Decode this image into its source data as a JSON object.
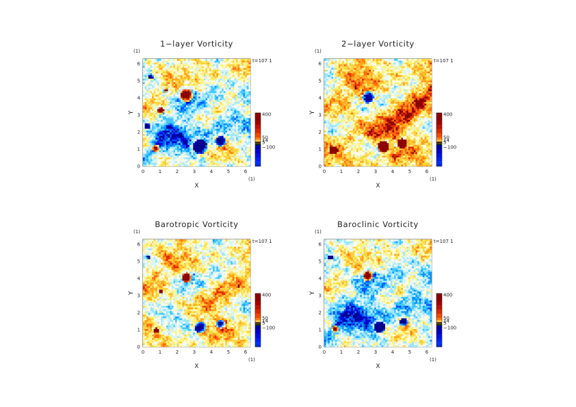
{
  "chart_data": [
    {
      "type": "heatmap",
      "title": "1−layer Vorticity",
      "xlabel": "X",
      "ylabel": "Y",
      "x_unit": "(1)",
      "y_unit": "(1)",
      "time_label": "t=107 1",
      "xlim": [
        0,
        6.28
      ],
      "ylim": [
        0,
        6.28
      ],
      "x_ticks": [
        "0",
        "1",
        "2",
        "3",
        "4",
        "5",
        "6"
      ],
      "y_ticks": [
        "0",
        "1",
        "2",
        "3",
        "4",
        "5",
        "6"
      ],
      "colorbar_labels": [
        "400",
        "50",
        "14",
        "5",
        "−100"
      ],
      "colorbar_values": [
        400,
        50,
        14,
        5,
        -100
      ],
      "style": "layer1",
      "vortices": [
        {
          "x": 2.5,
          "y": 4.1,
          "r": 0.38,
          "sign": 1
        },
        {
          "x": 3.3,
          "y": 1.1,
          "r": 0.42,
          "sign": -1
        },
        {
          "x": 4.5,
          "y": 1.4,
          "r": 0.32,
          "sign": -1
        },
        {
          "x": 0.7,
          "y": 1.0,
          "r": 0.22,
          "sign": 1
        },
        {
          "x": 1.0,
          "y": 3.2,
          "r": 0.18,
          "sign": 1
        },
        {
          "x": 0.2,
          "y": 2.3,
          "r": 0.18,
          "sign": -1
        },
        {
          "x": 0.4,
          "y": 5.2,
          "r": 0.15,
          "sign": -1
        },
        {
          "x": 1.3,
          "y": 4.4,
          "r": 0.12,
          "sign": 1
        }
      ]
    },
    {
      "type": "heatmap",
      "title": "2−layer Vorticity",
      "xlabel": "X",
      "ylabel": "Y",
      "x_unit": "(1)",
      "y_unit": "(1)",
      "time_label": "t=107 1",
      "xlim": [
        0,
        6.28
      ],
      "ylim": [
        0,
        6.28
      ],
      "x_ticks": [
        "0",
        "1",
        "2",
        "3",
        "4",
        "5",
        "6"
      ],
      "y_ticks": [
        "0",
        "1",
        "2",
        "3",
        "4",
        "5",
        "6"
      ],
      "colorbar_labels": [
        "400",
        "50",
        "14",
        "5",
        "−100"
      ],
      "colorbar_values": [
        400,
        50,
        14,
        5,
        -100
      ],
      "style": "layer2",
      "vortices": [
        {
          "x": 2.5,
          "y": 4.0,
          "r": 0.35,
          "sign": -1
        },
        {
          "x": 3.4,
          "y": 1.1,
          "r": 0.35,
          "sign": 1
        },
        {
          "x": 4.5,
          "y": 1.3,
          "r": 0.28,
          "sign": 1
        },
        {
          "x": 0.5,
          "y": 0.9,
          "r": 0.25,
          "sign": 1
        }
      ]
    },
    {
      "type": "heatmap",
      "title": "Barotropic Vorticity",
      "xlabel": "X",
      "ylabel": "Y",
      "x_unit": "(1)",
      "y_unit": "(1)",
      "time_label": "t=107 1",
      "xlim": [
        0,
        6.28
      ],
      "ylim": [
        0,
        6.28
      ],
      "x_ticks": [
        "0",
        "1",
        "2",
        "3",
        "4",
        "5",
        "6"
      ],
      "y_ticks": [
        "0",
        "1",
        "2",
        "3",
        "4",
        "5",
        "6"
      ],
      "colorbar_labels": [
        "400",
        "50",
        "14",
        "5",
        "−100"
      ],
      "colorbar_values": [
        400,
        50,
        14,
        5,
        -100
      ],
      "style": "barotropic",
      "vortices": [
        {
          "x": 2.5,
          "y": 4.0,
          "r": 0.3,
          "sign": 1
        },
        {
          "x": 3.3,
          "y": 1.1,
          "r": 0.32,
          "sign": -1
        },
        {
          "x": 4.5,
          "y": 1.3,
          "r": 0.26,
          "sign": -1
        },
        {
          "x": 0.7,
          "y": 0.9,
          "r": 0.16,
          "sign": 1
        },
        {
          "x": 1.0,
          "y": 3.2,
          "r": 0.12,
          "sign": 1
        },
        {
          "x": 0.3,
          "y": 5.2,
          "r": 0.12,
          "sign": -1
        }
      ]
    },
    {
      "type": "heatmap",
      "title": "Baroclinic Vorticity",
      "xlabel": "X",
      "ylabel": "Y",
      "x_unit": "(1)",
      "y_unit": "(1)",
      "time_label": "t=107 1",
      "xlim": [
        0,
        6.28
      ],
      "ylim": [
        0,
        6.28
      ],
      "x_ticks": [
        "0",
        "1",
        "2",
        "3",
        "4",
        "5",
        "6"
      ],
      "y_ticks": [
        "0",
        "1",
        "2",
        "3",
        "4",
        "5",
        "6"
      ],
      "colorbar_labels": [
        "400",
        "50",
        "14",
        "5",
        "−100"
      ],
      "colorbar_values": [
        400,
        50,
        14,
        5,
        -100
      ],
      "style": "baroclinic",
      "vortices": [
        {
          "x": 2.5,
          "y": 4.1,
          "r": 0.3,
          "sign": 1
        },
        {
          "x": 3.2,
          "y": 1.1,
          "r": 0.32,
          "sign": -1
        },
        {
          "x": 4.6,
          "y": 1.4,
          "r": 0.26,
          "sign": -1
        },
        {
          "x": 0.6,
          "y": 1.0,
          "r": 0.2,
          "sign": 1
        },
        {
          "x": 0.3,
          "y": 5.2,
          "r": 0.14,
          "sign": -1
        }
      ]
    }
  ]
}
